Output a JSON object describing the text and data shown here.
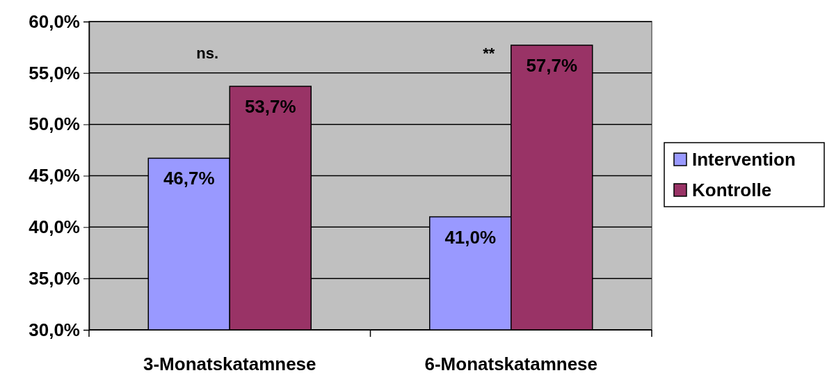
{
  "chart_data": {
    "type": "bar",
    "categories": [
      "3-Monatskatamnese",
      "6-Monatskatamnese"
    ],
    "series": [
      {
        "name": "Intervention",
        "color": "#9999ff",
        "values": [
          46.7,
          41.0
        ],
        "value_labels": [
          "46,7%",
          "41,0%"
        ]
      },
      {
        "name": "Kontrolle",
        "color": "#993366",
        "values": [
          53.7,
          57.7
        ],
        "value_labels": [
          "53,7%",
          "57,7%"
        ]
      }
    ],
    "ylim": [
      30,
      60
    ],
    "yticks": [
      {
        "value": 30,
        "label": "30,0%"
      },
      {
        "value": 35,
        "label": "35,0%"
      },
      {
        "value": 40,
        "label": "40,0%"
      },
      {
        "value": 45,
        "label": "45,0%"
      },
      {
        "value": 50,
        "label": "50,0%"
      },
      {
        "value": 55,
        "label": "55,0%"
      },
      {
        "value": 60,
        "label": "60,0%"
      }
    ],
    "grid": "y",
    "legend": "right",
    "annotations": [
      "ns.",
      "**"
    ]
  }
}
